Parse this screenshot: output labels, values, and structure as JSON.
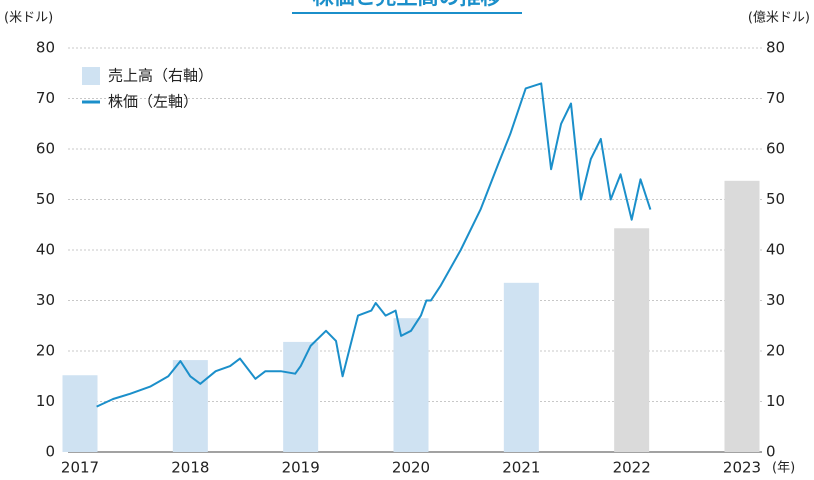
{
  "chart_data": {
    "type": "bar-line",
    "title": "株価と売上高の推移",
    "y_label": "(米ドル)",
    "y2_label": "(億米ドル)",
    "x_label": "(年)",
    "categories": [
      "2017",
      "2018",
      "2019",
      "2020",
      "2021",
      "2022",
      "2023"
    ],
    "xlim": [
      2017,
      2023
    ],
    "ylim": [
      0,
      80
    ],
    "yticks": [
      0,
      10,
      20,
      30,
      40,
      50,
      60,
      70,
      80
    ],
    "y2lim": [
      0,
      80
    ],
    "y2ticks": [
      0,
      10,
      20,
      30,
      40,
      50,
      60,
      70,
      80
    ],
    "grid": true,
    "legend": "upper left",
    "series": [
      {
        "name": "売上高（右軸）",
        "type": "bar",
        "axis": "y2",
        "color": "#cfe2f2",
        "colors": [
          "#cfe2f2",
          "#cfe2f2",
          "#cfe2f2",
          "#cfe2f2",
          "#cfe2f2",
          "#dadada",
          "#dadada"
        ],
        "values": [
          15.2,
          18.2,
          21.8,
          26.5,
          33.5,
          44.3,
          53.7
        ]
      },
      {
        "name": "株価（左軸）",
        "type": "line",
        "color": "#1b8fca",
        "x": [
          2017.15,
          2017.3,
          2017.45,
          2017.64,
          2017.8,
          2017.91,
          2018.0,
          2018.09,
          2018.23,
          2018.36,
          2018.45,
          2018.59,
          2018.68,
          2018.82,
          2018.95,
          2019.0,
          2019.09,
          2019.23,
          2019.32,
          2019.38,
          2019.45,
          2019.52,
          2019.64,
          2019.68,
          2019.77,
          2019.86,
          2019.91,
          2020.0,
          2020.09,
          2020.14,
          2020.18,
          2020.27,
          2020.45,
          2020.63,
          2020.79,
          2020.9,
          2021.04,
          2021.18,
          2021.27,
          2021.36,
          2021.45,
          2021.54,
          2021.63,
          2021.72,
          2021.81,
          2021.9,
          2022.0,
          2022.08,
          2022.17
        ],
        "values": [
          9,
          10.5,
          11.5,
          13,
          15,
          18,
          15,
          13.5,
          16,
          17,
          18.5,
          14.5,
          16,
          16,
          15.5,
          17,
          21,
          24,
          22,
          15,
          21,
          27,
          28,
          29.5,
          27,
          28,
          23,
          24,
          27,
          30,
          30,
          33,
          40,
          48,
          57,
          63,
          72,
          73,
          56,
          65,
          69,
          50,
          58,
          62,
          50,
          55,
          46,
          54,
          48
        ]
      }
    ]
  }
}
